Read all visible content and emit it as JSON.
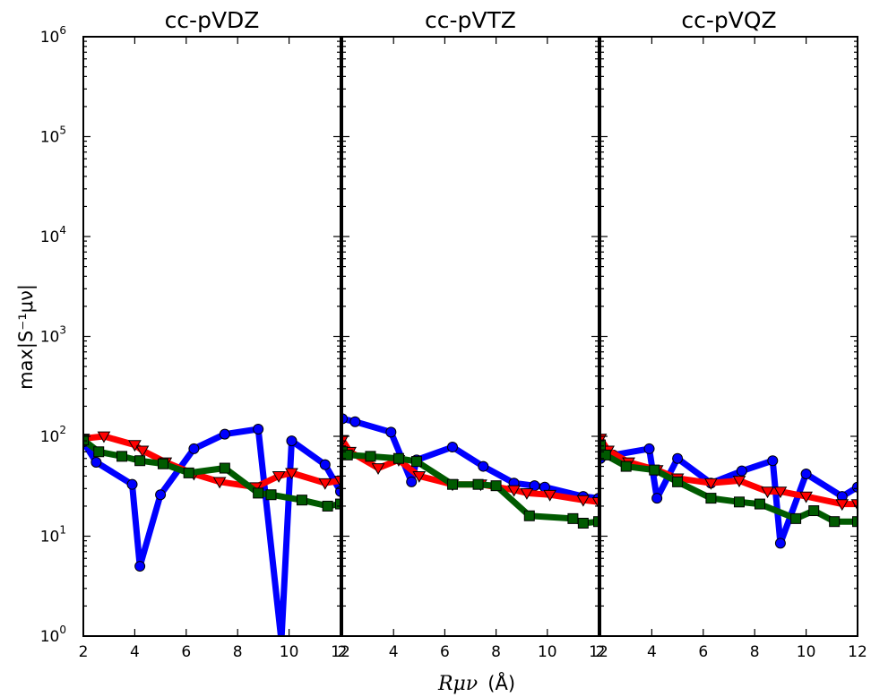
{
  "chart_data": {
    "type": "line",
    "yscale": "log",
    "ylim": [
      1,
      1000000
    ],
    "ylabel": "max|S⁻¹μν|",
    "xlabel_symbol": "Rμν",
    "xlabel_unit": "(Å)",
    "y_ticks": [
      {
        "value": 1,
        "base": "10",
        "exp": "0"
      },
      {
        "value": 10,
        "base": "10",
        "exp": "1"
      },
      {
        "value": 100,
        "base": "10",
        "exp": "2"
      },
      {
        "value": 1000,
        "base": "10",
        "exp": "3"
      },
      {
        "value": 10000,
        "base": "10",
        "exp": "4"
      },
      {
        "value": 100000,
        "base": "10",
        "exp": "5"
      },
      {
        "value": 1000000,
        "base": "10",
        "exp": "6"
      }
    ],
    "x_ticks": [
      "2",
      "4",
      "6",
      "8",
      "10",
      "12"
    ],
    "series_styles": [
      {
        "color": "#0000ff",
        "marker": "circle"
      },
      {
        "color": "#ff0000",
        "marker": "triangle-down"
      },
      {
        "color": "#005a00",
        "marker": "square"
      }
    ],
    "panels": [
      {
        "title": "cc-pVDZ",
        "xlim": [
          2,
          12
        ],
        "series": [
          {
            "x": [
              2,
              2.5,
              3.9,
              4.2,
              5.0,
              6.3,
              7.5,
              8.8,
              9.7,
              10.1,
              11.4,
              12.0
            ],
            "y": [
              88,
              55,
              33,
              5,
              26,
              75,
              105,
              118,
              0.9,
              90,
              52,
              28
            ]
          },
          {
            "x": [
              2,
              2.8,
              4.0,
              4.3,
              5.2,
              6.3,
              7.3,
              8.7,
              9.6,
              10.1,
              11.4,
              12.0
            ],
            "y": [
              95,
              100,
              82,
              72,
              55,
              42,
              35,
              31,
              40,
              43,
              34,
              36
            ]
          },
          {
            "x": [
              2,
              2.6,
              3.5,
              4.2,
              5.1,
              6.1,
              7.5,
              8.8,
              9.3,
              10.5,
              11.5,
              12.0
            ],
            "y": [
              92,
              70,
              63,
              57,
              53,
              43,
              48,
              27,
              26,
              23,
              20,
              21
            ]
          }
        ]
      },
      {
        "title": "cc-pVTZ",
        "xlim": [
          2,
          12
        ],
        "series": [
          {
            "x": [
              2,
              2.5,
              3.9,
              4.7,
              4.9,
              6.3,
              7.5,
              8.7,
              9.5,
              9.9,
              11.4,
              12.0
            ],
            "y": [
              150,
              140,
              110,
              35,
              58,
              78,
              50,
              34,
              32,
              31,
              25,
              24
            ]
          },
          {
            "x": [
              2,
              2.3,
              3.4,
              4.2,
              5.0,
              6.3,
              7.4,
              8.7,
              9.2,
              10.1,
              11.4,
              12.0
            ],
            "y": [
              92,
              70,
              48,
              58,
              40,
              33,
              33,
              29,
              27,
              26,
              23,
              22
            ]
          },
          {
            "x": [
              2,
              2.2,
              3.1,
              4.2,
              4.9,
              6.3,
              7.3,
              8.0,
              9.3,
              11.0,
              11.4,
              12.0
            ],
            "y": [
              70,
              65,
              63,
              60,
              56,
              33,
              33,
              32,
              16,
              15,
              13.5,
              14
            ]
          }
        ]
      },
      {
        "title": "cc-pVQZ",
        "xlim": [
          2,
          12
        ],
        "series": [
          {
            "x": [
              2,
              2.5,
              3.9,
              4.2,
              5.0,
              6.3,
              7.5,
              8.7,
              9.0,
              10.0,
              11.4,
              12.0
            ],
            "y": [
              60,
              65,
              75,
              24,
              60,
              34,
              45,
              57,
              8.5,
              42,
              25,
              31
            ]
          },
          {
            "x": [
              2,
              2.3,
              3.1,
              4.2,
              5.0,
              6.3,
              7.4,
              8.5,
              9.0,
              10.0,
              11.4,
              12.0
            ],
            "y": [
              95,
              72,
              55,
              46,
              38,
              34,
              36,
              28,
              28,
              25,
              21,
              21
            ]
          },
          {
            "x": [
              2,
              2.2,
              3.0,
              4.1,
              5.0,
              6.3,
              7.4,
              8.2,
              9.6,
              10.3,
              11.1,
              12.0
            ],
            "y": [
              82,
              65,
              50,
              46,
              35,
              24,
              22,
              21,
              15,
              18,
              14,
              14
            ]
          }
        ]
      }
    ]
  }
}
